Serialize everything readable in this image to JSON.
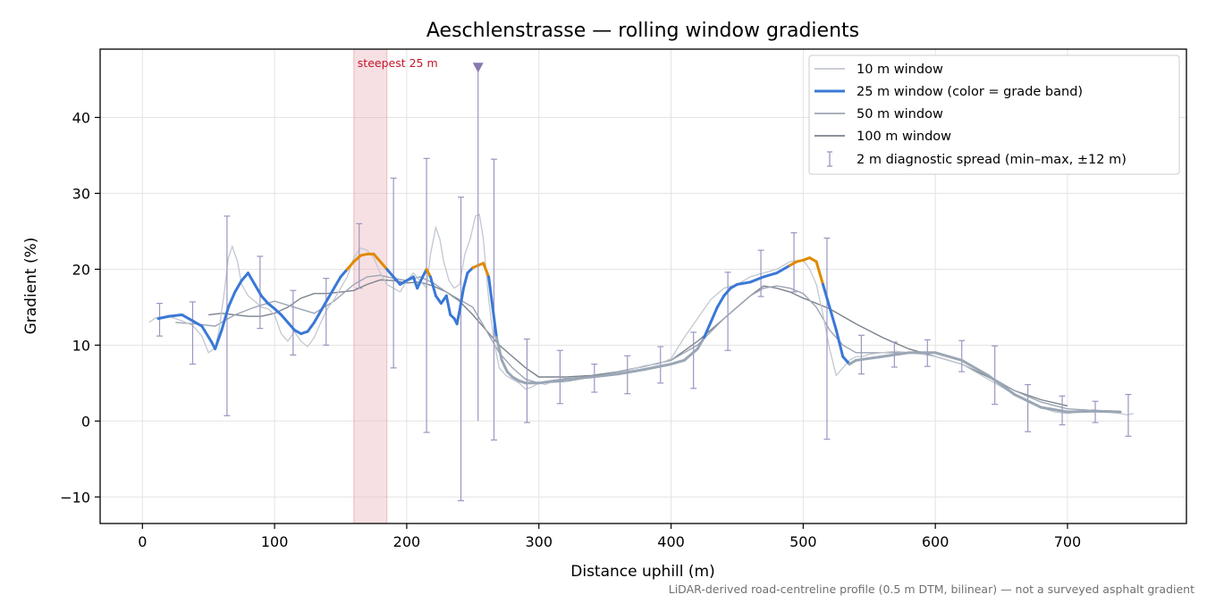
{
  "chart_data": {
    "type": "line",
    "title": "Aeschlenstrasse — rolling window gradients",
    "xlabel": "Distance uphill (m)",
    "ylabel": "Gradient (%)",
    "xlim": [
      -32,
      790
    ],
    "ylim": [
      -13.5,
      49
    ],
    "xticks": [
      0,
      100,
      200,
      300,
      400,
      500,
      600,
      700
    ],
    "yticks": [
      -10,
      0,
      10,
      20,
      30,
      40
    ],
    "grid": true,
    "legend_placement": "top-right",
    "footnote": "LiDAR-derived road-centreline profile (0.5 m DTM, bilinear) — not a surveyed asphalt gradient",
    "colors": {
      "w10": "#c2c8d1",
      "w25_blue": "#3a78d6",
      "w25_orange": "#e08a00",
      "w25_gray": "#9aa6b5",
      "w50": "#9ba5b3",
      "w100": "#7b828c",
      "errorbar": "#9a96c0",
      "steep_band": "#e7a6ae",
      "marker": "#8878b0"
    },
    "highlight_band": {
      "x0": 160,
      "x1": 185,
      "label": "steepest 25 m"
    },
    "peak_marker": {
      "x": 254,
      "y": 46.5
    },
    "series": [
      {
        "name": "10 m window",
        "x": [
          5,
          10,
          20,
          30,
          38,
          45,
          50,
          55,
          58,
          62,
          65,
          68,
          72,
          75,
          80,
          85,
          90,
          95,
          100,
          105,
          110,
          115,
          120,
          125,
          130,
          135,
          140,
          145,
          150,
          155,
          160,
          165,
          170,
          175,
          180,
          185,
          190,
          195,
          200,
          205,
          210,
          215,
          218,
          222,
          225,
          228,
          232,
          236,
          240,
          244,
          248,
          252,
          255,
          258,
          262,
          266,
          270,
          275,
          280,
          285,
          290,
          295,
          300,
          305,
          310,
          320,
          330,
          340,
          350,
          360,
          370,
          380,
          390,
          400,
          410,
          420,
          430,
          440,
          450,
          460,
          470,
          480,
          490,
          500,
          505,
          510,
          515,
          520,
          525,
          530,
          535,
          540,
          545,
          550,
          560,
          570,
          580,
          590,
          600,
          610,
          620,
          630,
          640,
          650,
          660,
          670,
          680,
          690,
          700,
          710,
          720,
          730,
          740,
          745,
          750
        ],
        "values": [
          13.0,
          13.6,
          13.8,
          13.2,
          12.6,
          11.2,
          9.0,
          9.6,
          12.0,
          17.0,
          21.5,
          23.0,
          21.0,
          18.0,
          16.5,
          15.8,
          15.0,
          14.8,
          14.0,
          11.5,
          10.5,
          11.8,
          10.5,
          9.8,
          11.0,
          13.0,
          14.8,
          16.0,
          17.5,
          19.0,
          21.5,
          22.8,
          22.5,
          21.5,
          19.5,
          18.0,
          17.5,
          17.0,
          18.5,
          19.5,
          18.5,
          17.5,
          22.0,
          25.5,
          24.0,
          21.0,
          18.5,
          17.5,
          18.0,
          22.0,
          24.0,
          27.0,
          27.2,
          24.0,
          16.0,
          10.5,
          7.0,
          6.0,
          5.5,
          5.0,
          4.2,
          4.5,
          5.0,
          4.8,
          5.2,
          5.5,
          5.6,
          5.8,
          6.0,
          6.3,
          6.8,
          7.3,
          7.5,
          8.2,
          11.0,
          13.5,
          16.0,
          17.5,
          18.0,
          19.0,
          19.5,
          20.0,
          21.0,
          21.2,
          20.0,
          18.0,
          14.0,
          9.5,
          6.0,
          7.0,
          8.0,
          8.5,
          8.5,
          8.8,
          9.0,
          9.2,
          9.0,
          8.8,
          8.5,
          8.0,
          7.5,
          6.5,
          5.5,
          4.5,
          3.5,
          2.5,
          1.8,
          1.2,
          1.0,
          1.3,
          1.5,
          1.2,
          1.0,
          0.8,
          1.0
        ]
      },
      {
        "name": "25 m window (color = grade band)",
        "x": [
          12,
          20,
          30,
          38,
          45,
          52,
          55,
          60,
          65,
          70,
          75,
          80,
          85,
          90,
          95,
          100,
          105,
          110,
          115,
          120,
          125,
          130,
          135,
          140,
          145,
          150,
          155,
          160,
          165,
          170,
          175,
          180,
          185,
          190,
          195,
          200,
          205,
          208,
          212,
          215,
          218,
          222,
          226,
          230,
          233,
          236,
          238,
          240,
          243,
          246,
          250,
          254,
          258,
          262,
          265,
          268,
          272,
          276,
          280,
          285,
          290,
          300,
          320,
          340,
          360,
          380,
          400,
          410,
          420,
          425,
          430,
          435,
          440,
          445,
          450,
          460,
          470,
          480,
          490,
          495,
          500,
          505,
          510,
          515,
          520,
          525,
          530,
          535,
          540,
          560,
          580,
          600,
          620,
          640,
          660,
          680,
          700,
          720,
          740
        ],
        "values": [
          13.5,
          13.8,
          14.0,
          13.2,
          12.5,
          10.5,
          9.5,
          12.0,
          15.0,
          17.0,
          18.5,
          19.5,
          18.0,
          16.5,
          15.5,
          14.8,
          14.0,
          13.0,
          12.0,
          11.5,
          11.8,
          13.0,
          14.5,
          16.0,
          17.5,
          19.0,
          20.0,
          21.0,
          21.8,
          22.0,
          22.0,
          21.0,
          20.0,
          19.0,
          18.0,
          18.5,
          19.0,
          17.5,
          19.0,
          20.0,
          19.0,
          16.5,
          15.5,
          16.5,
          14.0,
          13.5,
          12.8,
          14.5,
          17.5,
          19.5,
          20.2,
          20.5,
          20.8,
          19.0,
          15.0,
          11.0,
          8.0,
          6.5,
          5.8,
          5.3,
          5.0,
          5.0,
          5.5,
          5.8,
          6.2,
          6.8,
          7.5,
          8.0,
          9.5,
          11.0,
          13.0,
          15.0,
          16.5,
          17.5,
          18.0,
          18.3,
          19.0,
          19.5,
          20.5,
          21.0,
          21.2,
          21.5,
          21.0,
          18.0,
          15.0,
          12.0,
          8.5,
          7.5,
          8.0,
          8.5,
          9.0,
          9.0,
          8.0,
          6.0,
          3.5,
          1.8,
          1.2,
          1.3,
          1.2
        ],
        "bands": [
          "blue",
          "blue",
          "blue",
          "blue",
          "blue",
          "blue",
          "blue",
          "blue",
          "blue",
          "blue",
          "blue",
          "blue",
          "blue",
          "blue",
          "blue",
          "blue",
          "blue",
          "blue",
          "blue",
          "blue",
          "blue",
          "blue",
          "blue",
          "blue",
          "blue",
          "blue",
          "orange",
          "orange",
          "orange",
          "orange",
          "orange",
          "orange",
          "blue",
          "blue",
          "blue",
          "blue",
          "blue",
          "blue",
          "blue",
          "orange",
          "blue",
          "blue",
          "blue",
          "blue",
          "blue",
          "blue",
          "blue",
          "blue",
          "blue",
          "blue",
          "orange",
          "orange",
          "orange",
          "blue",
          "blue",
          "gray",
          "gray",
          "gray",
          "gray",
          "gray",
          "gray",
          "gray",
          "gray",
          "gray",
          "gray",
          "gray",
          "gray",
          "gray",
          "gray",
          "blue",
          "blue",
          "blue",
          "blue",
          "blue",
          "blue",
          "blue",
          "blue",
          "blue",
          "orange",
          "orange",
          "orange",
          "orange",
          "orange",
          "blue",
          "blue",
          "blue",
          "blue",
          "gray",
          "gray",
          "gray",
          "gray",
          "gray",
          "gray",
          "gray",
          "gray",
          "gray",
          "gray",
          "gray",
          "gray"
        ]
      },
      {
        "name": "50 m window",
        "x": [
          25,
          40,
          55,
          70,
          85,
          100,
          115,
          130,
          145,
          160,
          170,
          180,
          190,
          200,
          210,
          220,
          230,
          240,
          250,
          260,
          270,
          280,
          290,
          300,
          320,
          340,
          360,
          380,
          400,
          420,
          440,
          460,
          470,
          480,
          490,
          500,
          510,
          520,
          530,
          540,
          560,
          580,
          600,
          620,
          640,
          660,
          680,
          700,
          720,
          740
        ],
        "values": [
          13.0,
          12.8,
          12.5,
          14.0,
          15.0,
          15.8,
          15.0,
          14.2,
          15.8,
          18.0,
          19.0,
          19.2,
          18.8,
          18.5,
          19.0,
          18.2,
          17.0,
          16.0,
          15.0,
          12.0,
          9.0,
          7.0,
          5.5,
          5.0,
          5.2,
          5.8,
          6.5,
          7.2,
          8.0,
          10.0,
          13.5,
          16.5,
          17.5,
          17.8,
          17.5,
          16.8,
          15.0,
          12.0,
          10.0,
          9.0,
          9.0,
          9.0,
          9.0,
          8.0,
          6.0,
          4.0,
          2.5,
          1.6,
          1.4,
          1.3
        ]
      },
      {
        "name": "100 m window",
        "x": [
          50,
          60,
          70,
          80,
          90,
          100,
          110,
          120,
          130,
          140,
          150,
          160,
          170,
          180,
          190,
          200,
          210,
          220,
          230,
          240,
          250,
          260,
          270,
          280,
          290,
          300,
          320,
          340,
          360,
          380,
          400,
          420,
          440,
          460,
          470,
          480,
          490,
          500,
          510,
          520,
          530,
          540,
          560,
          580,
          600,
          620,
          640,
          660,
          680,
          700
        ],
        "values": [
          14.0,
          14.2,
          14.0,
          13.8,
          13.8,
          14.2,
          15.0,
          16.2,
          16.8,
          16.8,
          17.0,
          17.2,
          18.0,
          18.6,
          18.5,
          18.2,
          18.3,
          17.8,
          17.0,
          15.8,
          14.0,
          12.0,
          10.0,
          8.5,
          7.0,
          5.8,
          5.8,
          6.0,
          6.5,
          7.2,
          8.0,
          10.5,
          13.5,
          16.5,
          17.8,
          17.5,
          17.0,
          16.2,
          15.5,
          14.8,
          13.8,
          12.8,
          11.0,
          9.5,
          8.5,
          7.5,
          5.8,
          4.0,
          2.8,
          2.0
        ]
      }
    ],
    "errorbars": {
      "name": "2 m diagnostic spread (min–max, ±12 m)",
      "x": [
        13,
        38,
        64,
        89,
        114,
        139,
        164,
        190,
        215,
        241,
        266,
        291,
        316,
        342,
        367,
        392,
        417,
        443,
        468,
        493,
        518,
        544,
        569,
        594,
        620,
        645,
        670,
        696,
        721,
        746
      ],
      "low": [
        11.2,
        7.5,
        0.7,
        12.2,
        8.7,
        10.0,
        17.5,
        7.0,
        -1.5,
        -10.5,
        -2.5,
        -0.2,
        2.3,
        3.8,
        3.6,
        5.0,
        4.3,
        9.3,
        16.4,
        17.0,
        -2.4,
        6.2,
        7.1,
        7.2,
        6.5,
        2.2,
        -1.4,
        -0.5,
        -0.2,
        -2.0
      ],
      "high": [
        15.5,
        15.7,
        27.0,
        21.7,
        17.2,
        18.8,
        26.0,
        32.0,
        34.6,
        29.5,
        34.5,
        10.8,
        9.3,
        7.5,
        8.6,
        9.8,
        11.7,
        19.6,
        22.5,
        24.8,
        24.1,
        11.3,
        10.4,
        10.7,
        10.6,
        9.9,
        4.8,
        3.3,
        2.6,
        3.5
      ]
    }
  }
}
